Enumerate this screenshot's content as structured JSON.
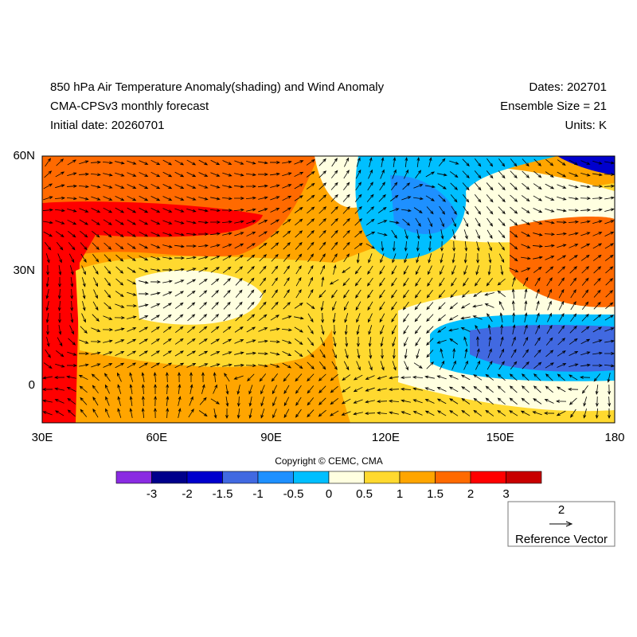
{
  "header": {
    "title": "850 hPa Air Temperature Anomaly(shading) and Wind Anomaly",
    "subtitle": "CMA-CPSv3 monthly forecast",
    "initial": "Initial date: 20260701",
    "dates": "Dates: 202701",
    "ensemble": "Ensemble Size = 21",
    "units": "Units: K"
  },
  "map": {
    "lon_ticks": [
      "30E",
      "60E",
      "90E",
      "120E",
      "150E",
      "180"
    ],
    "lat_ticks": [
      "60N",
      "30N",
      "0"
    ]
  },
  "copyright": "Copyright © CEMC, CMA",
  "colorbar": {
    "colors": [
      "#8a2be2",
      "#00008b",
      "#0000cd",
      "#4169e1",
      "#1e90ff",
      "#00bfff",
      "#ffffe0",
      "#ffd92f",
      "#ffa500",
      "#ff6a00",
      "#ff0000",
      "#c80000"
    ],
    "labels": [
      "-3",
      "-2",
      "-1.5",
      "-1",
      "-0.5",
      "0",
      "0.5",
      "1",
      "1.5",
      "2",
      "3"
    ]
  },
  "reference": {
    "value": "2",
    "label": "Reference Vector"
  }
}
